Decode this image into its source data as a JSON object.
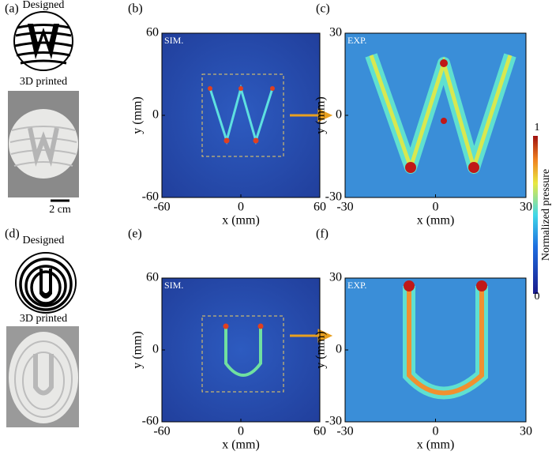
{
  "panels": [
    {
      "label": "(a)",
      "designed": "Designed",
      "printed": "3D printed",
      "scale": "2 cm"
    },
    {
      "label": "(b)",
      "tag": "SIM.",
      "xlabel": "x (mm)",
      "ylabel": "y (mm)",
      "xticks": [
        -60,
        0,
        60
      ],
      "yticks": [
        60,
        0,
        -60
      ]
    },
    {
      "label": "(c)",
      "tag": "EXP.",
      "xlabel": "x (mm)",
      "ylabel": "y (mm)",
      "xticks": [
        -30,
        0,
        30
      ],
      "yticks": [
        30,
        0,
        -30
      ]
    },
    {
      "label": "(d)",
      "designed": "Designed",
      "printed": "3D printed"
    },
    {
      "label": "(e)",
      "tag": "SIM.",
      "xlabel": "x (mm)",
      "ylabel": "y (mm)",
      "xticks": [
        -60,
        0,
        60
      ],
      "yticks": [
        60,
        0,
        -60
      ]
    },
    {
      "label": "(f)",
      "tag": "EXP.",
      "xlabel": "x (mm)",
      "ylabel": "y (mm)",
      "xticks": [
        -30,
        0,
        30
      ],
      "yticks": [
        30,
        0,
        -30
      ]
    }
  ],
  "colorbar": {
    "label": "Normalized pressure",
    "max": 1,
    "min": 0
  }
}
